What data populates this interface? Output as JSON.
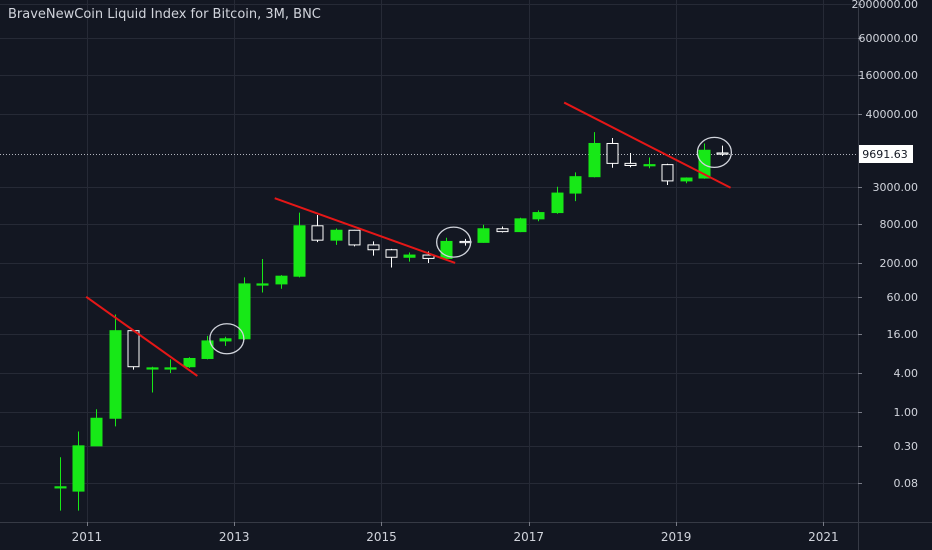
{
  "chart_data": {
    "type": "candlestick",
    "title": "BraveNewCoin Liquid Index for Bitcoin, 3M, BNC",
    "scale": "log",
    "grid": true,
    "colors": {
      "background": "#131722",
      "grid": "#262a36",
      "up": "#17e817",
      "down": "#ffffff",
      "trendline": "#e51717",
      "text": "#d1d4dc",
      "price_label_bg": "#ffffff",
      "price_label_text": "#131722"
    },
    "x_ticks": [
      "2011",
      "2013",
      "2015",
      "2017",
      "2019",
      "2021"
    ],
    "x_tick_values": [
      2011,
      2013,
      2015,
      2017,
      2019,
      2021
    ],
    "x_range": [
      2009.82,
      2021.47
    ],
    "y_ticks": [
      "2000000.00",
      "600000.00",
      "160000.00",
      "40000.00",
      "3000.00",
      "800.00",
      "200.00",
      "60.00",
      "16.00",
      "4.00",
      "1.00",
      "0.30",
      "0.08"
    ],
    "y_tick_values": [
      2000000,
      600000,
      160000,
      40000,
      3000,
      800,
      200,
      60,
      16,
      4,
      1,
      0.3,
      0.08
    ],
    "y_range": [
      0.02,
      2300000
    ],
    "last_price": 9691.63,
    "last_price_label": "9691.63",
    "candles": [
      {
        "x": 2010.63,
        "o": 0.07,
        "h": 0.2,
        "l": 0.03,
        "c": 0.07
      },
      {
        "x": 2010.88,
        "o": 0.06,
        "h": 0.5,
        "l": 0.03,
        "c": 0.3
      },
      {
        "x": 2011.13,
        "o": 0.3,
        "h": 1.1,
        "l": 0.3,
        "c": 0.8
      },
      {
        "x": 2011.38,
        "o": 0.8,
        "h": 32,
        "l": 0.6,
        "c": 18
      },
      {
        "x": 2011.63,
        "o": 18,
        "h": 18,
        "l": 4.5,
        "c": 5.0
      },
      {
        "x": 2011.88,
        "o": 4.8,
        "h": 5.0,
        "l": 2.0,
        "c": 4.8
      },
      {
        "x": 2012.13,
        "o": 4.6,
        "h": 6.5,
        "l": 4.0,
        "c": 4.8
      },
      {
        "x": 2012.38,
        "o": 5.0,
        "h": 7.0,
        "l": 4.8,
        "c": 6.7
      },
      {
        "x": 2012.63,
        "o": 6.7,
        "h": 15,
        "l": 6.5,
        "c": 12.5
      },
      {
        "x": 2012.88,
        "o": 12.5,
        "h": 14.5,
        "l": 10.5,
        "c": 13.5
      },
      {
        "x": 2013.13,
        "o": 13.5,
        "h": 120,
        "l": 13,
        "c": 95
      },
      {
        "x": 2013.38,
        "o": 95,
        "h": 230,
        "l": 70,
        "c": 95
      },
      {
        "x": 2013.63,
        "o": 95,
        "h": 130,
        "l": 80,
        "c": 125
      },
      {
        "x": 2013.88,
        "o": 125,
        "h": 1200,
        "l": 120,
        "c": 750
      },
      {
        "x": 2014.13,
        "o": 750,
        "h": 1100,
        "l": 420,
        "c": 450
      },
      {
        "x": 2014.38,
        "o": 450,
        "h": 680,
        "l": 380,
        "c": 640
      },
      {
        "x": 2014.63,
        "o": 640,
        "h": 650,
        "l": 360,
        "c": 380
      },
      {
        "x": 2014.88,
        "o": 380,
        "h": 430,
        "l": 260,
        "c": 320
      },
      {
        "x": 2015.13,
        "o": 320,
        "h": 330,
        "l": 170,
        "c": 245
      },
      {
        "x": 2015.38,
        "o": 245,
        "h": 290,
        "l": 210,
        "c": 265
      },
      {
        "x": 2015.63,
        "o": 265,
        "h": 300,
        "l": 200,
        "c": 235
      },
      {
        "x": 2015.88,
        "o": 235,
        "h": 490,
        "l": 230,
        "c": 430
      },
      {
        "x": 2016.13,
        "o": 430,
        "h": 470,
        "l": 370,
        "c": 416
      },
      {
        "x": 2016.38,
        "o": 416,
        "h": 780,
        "l": 410,
        "c": 675
      },
      {
        "x": 2016.63,
        "o": 675,
        "h": 730,
        "l": 590,
        "c": 610
      },
      {
        "x": 2016.88,
        "o": 610,
        "h": 1000,
        "l": 600,
        "c": 960
      },
      {
        "x": 2017.13,
        "o": 960,
        "h": 1300,
        "l": 880,
        "c": 1200
      },
      {
        "x": 2017.38,
        "o": 1200,
        "h": 3000,
        "l": 1150,
        "c": 2400
      },
      {
        "x": 2017.63,
        "o": 2400,
        "h": 5000,
        "l": 1800,
        "c": 4300
      },
      {
        "x": 2017.88,
        "o": 4300,
        "h": 21000,
        "l": 4200,
        "c": 14000
      },
      {
        "x": 2018.13,
        "o": 14000,
        "h": 17000,
        "l": 5900,
        "c": 6900
      },
      {
        "x": 2018.38,
        "o": 6900,
        "h": 10000,
        "l": 6000,
        "c": 6400
      },
      {
        "x": 2018.63,
        "o": 6400,
        "h": 8500,
        "l": 5800,
        "c": 6600
      },
      {
        "x": 2018.88,
        "o": 6600,
        "h": 6800,
        "l": 3200,
        "c": 3700
      },
      {
        "x": 2019.13,
        "o": 3700,
        "h": 4200,
        "l": 3400,
        "c": 4100
      },
      {
        "x": 2019.38,
        "o": 4100,
        "h": 14000,
        "l": 4000,
        "c": 11000
      },
      {
        "x": 2019.63,
        "o": 10000,
        "h": 13000,
        "l": 9000,
        "c": 9692
      }
    ],
    "trendlines": [
      {
        "x1": 2010.99,
        "y1": 60,
        "x2": 2012.5,
        "y2": 3.6
      },
      {
        "x1": 2013.55,
        "y1": 2000,
        "x2": 2016.0,
        "y2": 200
      },
      {
        "x1": 2017.48,
        "y1": 60000,
        "x2": 2019.74,
        "y2": 2900
      }
    ],
    "circles": [
      {
        "x": 2012.9,
        "y": 13.5
      },
      {
        "x": 2015.98,
        "y": 420
      },
      {
        "x": 2019.52,
        "y": 10200
      }
    ]
  }
}
